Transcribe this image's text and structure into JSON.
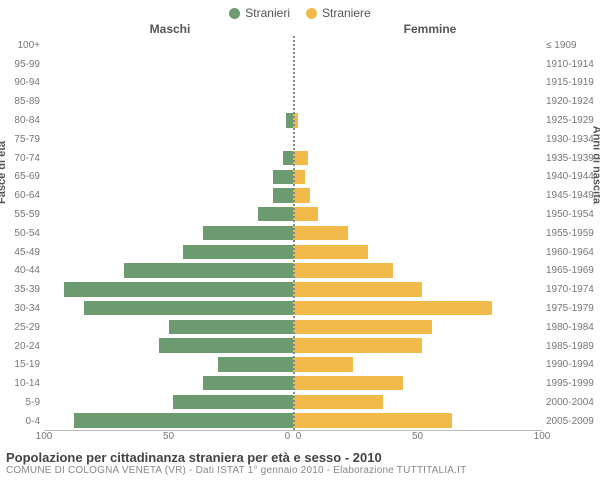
{
  "chart": {
    "type": "population-pyramid",
    "legend": [
      {
        "label": "Stranieri",
        "color": "#6b9b6e"
      },
      {
        "label": "Straniere",
        "color": "#f2b94b"
      }
    ],
    "header_left": "Maschi",
    "header_right": "Femmine",
    "y_title_left": "Fasce di età",
    "y_title_right": "Anni di nascita",
    "x_max": 100,
    "x_ticks_left": [
      "100",
      "50",
      "0"
    ],
    "x_ticks_right": [
      "0",
      "50",
      "100"
    ],
    "male_color": "#6b9b6e",
    "female_color": "#f2b94b",
    "background_color": "#ffffff",
    "grid_color": "#e5e5e5",
    "label_fontsize": 10,
    "rows": [
      {
        "age": "100+",
        "birth": "≤ 1909",
        "m": 0,
        "f": 0
      },
      {
        "age": "95-99",
        "birth": "1910-1914",
        "m": 0,
        "f": 0
      },
      {
        "age": "90-94",
        "birth": "1915-1919",
        "m": 0,
        "f": 0
      },
      {
        "age": "85-89",
        "birth": "1920-1924",
        "m": 0,
        "f": 0
      },
      {
        "age": "80-84",
        "birth": "1925-1929",
        "m": 3,
        "f": 2
      },
      {
        "age": "75-79",
        "birth": "1930-1934",
        "m": 0,
        "f": 0
      },
      {
        "age": "70-74",
        "birth": "1935-1939",
        "m": 4,
        "f": 6
      },
      {
        "age": "65-69",
        "birth": "1940-1944",
        "m": 8,
        "f": 5
      },
      {
        "age": "60-64",
        "birth": "1945-1949",
        "m": 8,
        "f": 7
      },
      {
        "age": "55-59",
        "birth": "1950-1954",
        "m": 14,
        "f": 10
      },
      {
        "age": "50-54",
        "birth": "1955-1959",
        "m": 36,
        "f": 22
      },
      {
        "age": "45-49",
        "birth": "1960-1964",
        "m": 44,
        "f": 30
      },
      {
        "age": "40-44",
        "birth": "1965-1969",
        "m": 68,
        "f": 40
      },
      {
        "age": "35-39",
        "birth": "1970-1974",
        "m": 92,
        "f": 52
      },
      {
        "age": "30-34",
        "birth": "1975-1979",
        "m": 84,
        "f": 80
      },
      {
        "age": "25-29",
        "birth": "1980-1984",
        "m": 50,
        "f": 56
      },
      {
        "age": "20-24",
        "birth": "1985-1989",
        "m": 54,
        "f": 52
      },
      {
        "age": "15-19",
        "birth": "1990-1994",
        "m": 30,
        "f": 24
      },
      {
        "age": "10-14",
        "birth": "1995-1999",
        "m": 36,
        "f": 44
      },
      {
        "age": "5-9",
        "birth": "2000-2004",
        "m": 48,
        "f": 36
      },
      {
        "age": "0-4",
        "birth": "2005-2009",
        "m": 88,
        "f": 64
      }
    ]
  },
  "footer": {
    "title": "Popolazione per cittadinanza straniera per età e sesso - 2010",
    "subtitle": "COMUNE DI COLOGNA VENETA (VR) - Dati ISTAT 1° gennaio 2010 - Elaborazione TUTTITALIA.IT"
  }
}
